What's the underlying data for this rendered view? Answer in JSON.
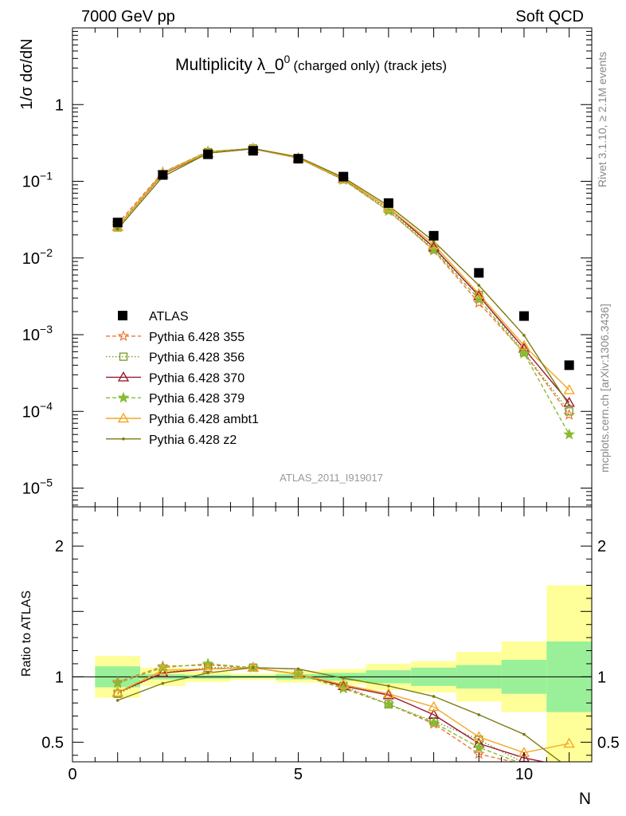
{
  "header": {
    "left": "7000 GeV pp",
    "right": "Soft QCD"
  },
  "side_labels": {
    "rivet": "Rivet 3.1.10, ≥ 2.1M events",
    "mcplots": "mcplots.cern.ch [arXiv:1306.3436]"
  },
  "analysis_id": "ATLAS_2011_I919017",
  "chart_data": [
    {
      "type": "scatter",
      "title": "Multiplicity λ_0",
      "title_sup": "0",
      "title_note": "(charged only) (track jets)",
      "ylabel": "1/σ dσ/dN",
      "xlabel": "N",
      "x_range": [
        0,
        11.5
      ],
      "yscale": "log",
      "y_range": [
        5.7e-06,
        10
      ],
      "y_ticks": [
        {
          "value": 1,
          "label": "1"
        },
        {
          "value": 0.1,
          "label": "10",
          "sup": "−1"
        },
        {
          "value": 0.01,
          "label": "10",
          "sup": "−2"
        },
        {
          "value": 0.001,
          "label": "10",
          "sup": "−3"
        },
        {
          "value": 0.0001,
          "label": "10",
          "sup": "−4"
        },
        {
          "value": 1e-05,
          "label": "10",
          "sup": "−5"
        }
      ],
      "x": [
        1,
        2,
        3,
        4,
        5,
        6,
        7,
        8,
        9,
        10,
        11
      ],
      "data_band_rel_inner": [
        0.08,
        0.02,
        0.015,
        0.01,
        0.02,
        0.03,
        0.05,
        0.07,
        0.09,
        0.13,
        0.27
      ],
      "data_band_rel_outer": [
        0.16,
        0.07,
        0.04,
        0.025,
        0.045,
        0.06,
        0.1,
        0.12,
        0.19,
        0.27,
        0.7
      ],
      "series": [
        {
          "name": "ATLAS",
          "color": "#000000",
          "style": "data",
          "marker": "square",
          "values": [
            0.029,
            0.121,
            0.225,
            0.25,
            0.197,
            0.115,
            0.052,
            0.0195,
            0.0064,
            0.00175,
            0.0004
          ]
        },
        {
          "name": "Pythia 6.428 355",
          "color": "#ee7733",
          "style": "dashed",
          "marker": "star-open",
          "values": [
            0.028,
            0.131,
            0.244,
            0.268,
            0.2,
            0.105,
            0.041,
            0.0125,
            0.0026,
            0.00058,
            9e-05
          ]
        },
        {
          "name": "Pythia 6.428 356",
          "color": "#779922",
          "style": "dotted",
          "marker": "square-open",
          "values": [
            0.025,
            0.123,
            0.24,
            0.268,
            0.2,
            0.106,
            0.043,
            0.013,
            0.0033,
            0.00059,
            0.0001
          ]
        },
        {
          "name": "Pythia 6.428 370",
          "color": "#991a33",
          "style": "solid",
          "marker": "triangle-open",
          "values": [
            0.0255,
            0.125,
            0.233,
            0.265,
            0.201,
            0.107,
            0.045,
            0.0138,
            0.0032,
            0.00066,
            0.00013
          ]
        },
        {
          "name": "Pythia 6.428 379",
          "color": "#88bb33",
          "style": "dashed",
          "marker": "star",
          "values": [
            0.026,
            0.13,
            0.245,
            0.268,
            0.2,
            0.104,
            0.041,
            0.0127,
            0.0029,
            0.00057,
            5e-05
          ]
        },
        {
          "name": "Pythia 6.428 ambt1",
          "color": "#f5a623",
          "style": "solid",
          "marker": "triangle-open",
          "values": [
            0.0255,
            0.127,
            0.236,
            0.266,
            0.201,
            0.108,
            0.045,
            0.015,
            0.0034,
            0.00072,
            0.00019
          ]
        },
        {
          "name": "Pythia 6.428 z2",
          "color": "#7a7a10",
          "style": "solid",
          "marker": "dot",
          "values": [
            0.0238,
            0.115,
            0.232,
            0.268,
            0.208,
            0.112,
            0.048,
            0.0165,
            0.0044,
            0.00098,
            0.00012
          ]
        }
      ]
    },
    {
      "type": "line",
      "ylabel": "Ratio to ATLAS",
      "xlabel": "N",
      "x_range": [
        0,
        11.5
      ],
      "y_range": [
        0.35,
        2.3
      ],
      "y_ticks_left": [
        {
          "value": 2,
          "label": "2"
        },
        {
          "value": 1,
          "label": "1"
        },
        {
          "value": 0.5,
          "label": "0.5"
        }
      ],
      "y_ticks_right": [
        {
          "value": 2,
          "label": "2"
        },
        {
          "value": 1,
          "label": "1"
        },
        {
          "value": 0.5,
          "label": "0.5"
        }
      ],
      "x_ticks": [
        {
          "value": 0,
          "label": "0"
        },
        {
          "value": 5,
          "label": "5"
        },
        {
          "value": 10,
          "label": "10"
        }
      ],
      "x": [
        1,
        2,
        3,
        4,
        5,
        6,
        7,
        8,
        9,
        10,
        11
      ],
      "series": [
        {
          "name": "Pythia 6.428 355",
          "values": [
            0.96,
            1.08,
            1.09,
            1.07,
            1.02,
            0.92,
            0.79,
            0.64,
            0.41,
            0.33,
            0.22
          ]
        },
        {
          "name": "Pythia 6.428 356",
          "values": [
            0.87,
            1.03,
            1.07,
            1.07,
            1.02,
            0.93,
            0.79,
            0.66,
            0.52,
            0.34,
            0.25
          ]
        },
        {
          "name": "Pythia 6.428 370",
          "values": [
            0.88,
            1.03,
            1.06,
            1.07,
            1.02,
            0.93,
            0.86,
            0.71,
            0.49,
            0.38,
            0.31
          ]
        },
        {
          "name": "Pythia 6.428 379",
          "values": [
            0.95,
            1.07,
            1.1,
            1.07,
            1.02,
            0.91,
            0.79,
            0.65,
            0.46,
            0.33,
            0.13
          ]
        },
        {
          "name": "Pythia 6.428 ambt1",
          "values": [
            0.88,
            1.05,
            1.06,
            1.07,
            1.02,
            0.94,
            0.87,
            0.77,
            0.54,
            0.42,
            0.49
          ]
        },
        {
          "name": "Pythia 6.428 z2",
          "values": [
            0.82,
            0.95,
            1.03,
            1.07,
            1.06,
            0.99,
            0.93,
            0.85,
            0.71,
            0.56,
            0.3
          ]
        }
      ]
    }
  ]
}
